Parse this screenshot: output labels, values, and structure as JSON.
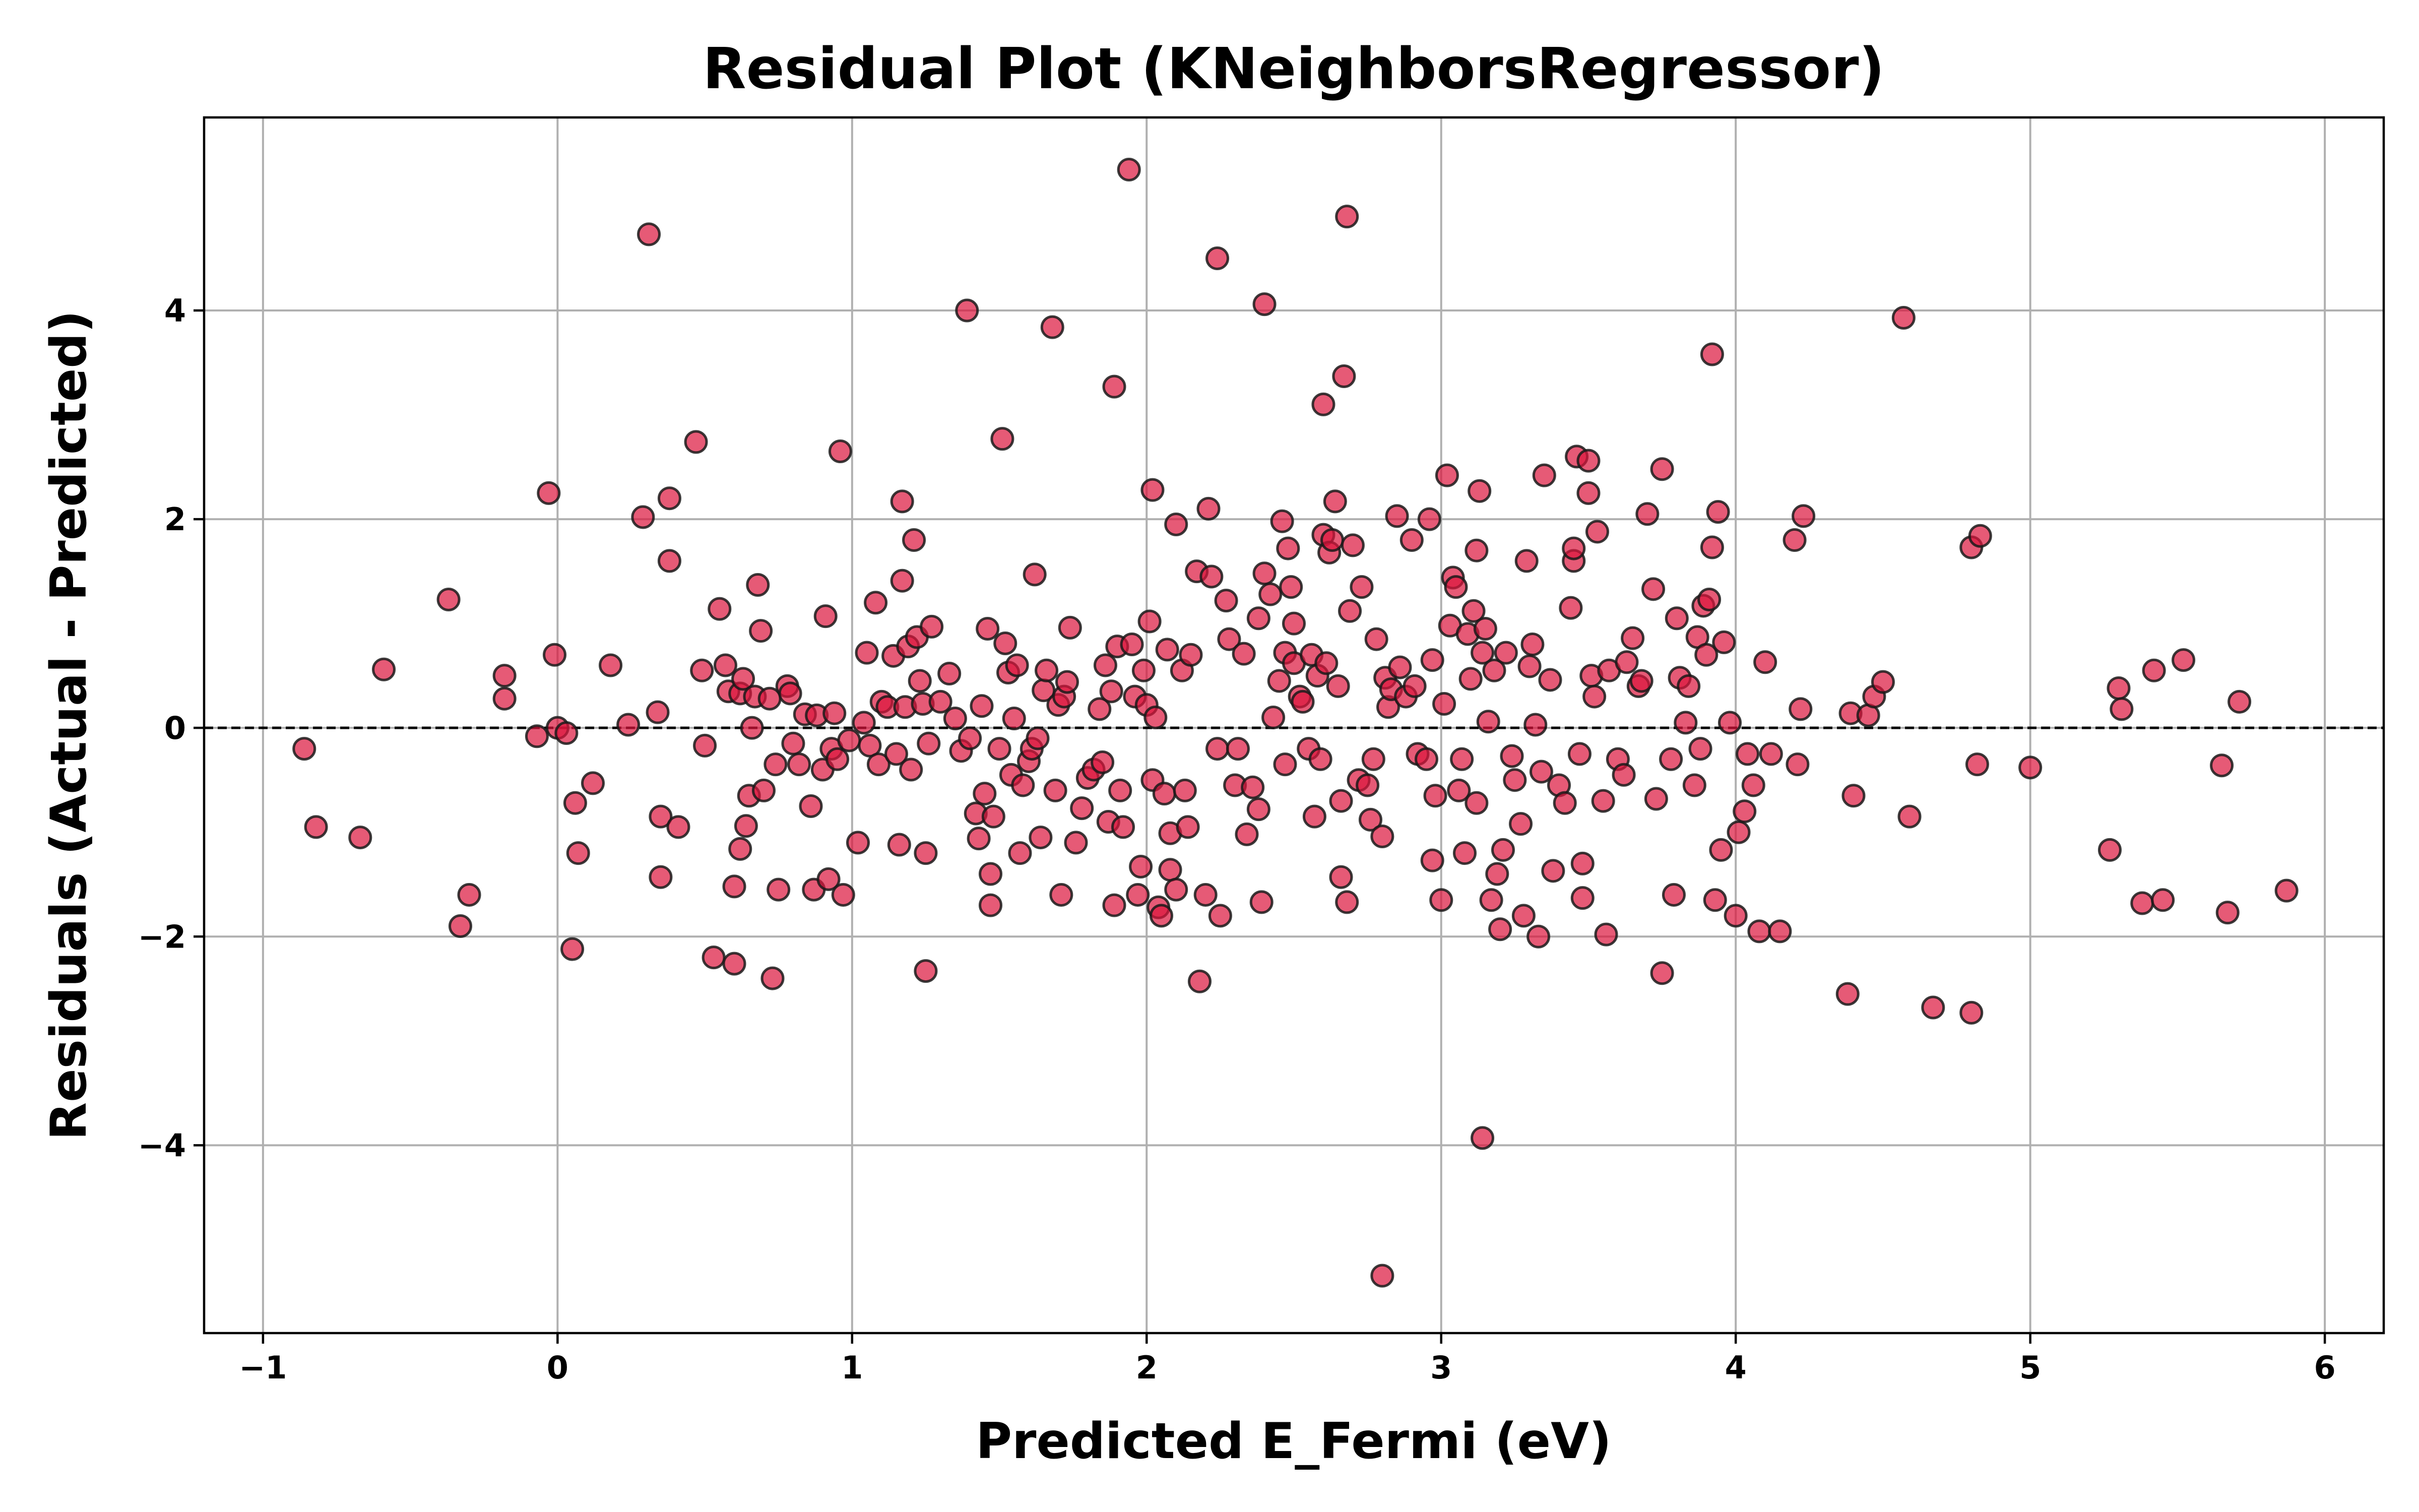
{
  "chart_data": {
    "type": "scatter",
    "title": "Residual Plot (KNeighborsRegressor)",
    "xlabel": "Predicted E_Fermi (eV)",
    "ylabel": "Residuals (Actual - Predicted)",
    "xlim": [
      -1.2,
      6.2
    ],
    "ylim": [
      -5.8,
      5.85
    ],
    "xticks": [
      -1,
      0,
      1,
      2,
      3,
      4,
      5,
      6
    ],
    "xtick_labels": [
      "−1",
      "0",
      "1",
      "2",
      "3",
      "4",
      "5",
      "6"
    ],
    "yticks": [
      -4,
      -2,
      0,
      2,
      4
    ],
    "ytick_labels": [
      "−4",
      "−2",
      "0",
      "2",
      "4"
    ],
    "grid": true,
    "reference_line": {
      "y": 0,
      "style": "dashed",
      "color": "#000000"
    },
    "marker": {
      "fill": "#dc143c",
      "edge": "#1a1a1a",
      "alpha": 0.7
    },
    "points": [
      [
        -0.86,
        -0.2
      ],
      [
        -0.82,
        -0.95
      ],
      [
        -0.67,
        -1.05
      ],
      [
        -0.59,
        0.56
      ],
      [
        -0.37,
        1.23
      ],
      [
        -0.3,
        -1.6
      ],
      [
        -0.33,
        -1.9
      ],
      [
        -0.18,
        0.5
      ],
      [
        -0.18,
        0.28
      ],
      [
        -0.07,
        -0.08
      ],
      [
        -0.03,
        2.25
      ],
      [
        -0.01,
        0.7
      ],
      [
        0.0,
        0.0
      ],
      [
        0.03,
        -0.05
      ],
      [
        0.06,
        -0.72
      ],
      [
        0.07,
        -1.2
      ],
      [
        0.05,
        -2.12
      ],
      [
        0.12,
        -0.53
      ],
      [
        0.18,
        0.6
      ],
      [
        0.24,
        0.03
      ],
      [
        0.29,
        2.02
      ],
      [
        0.31,
        4.73
      ],
      [
        0.34,
        0.15
      ],
      [
        0.35,
        -0.85
      ],
      [
        0.35,
        -1.43
      ],
      [
        0.38,
        2.2
      ],
      [
        0.38,
        1.6
      ],
      [
        0.41,
        -0.95
      ],
      [
        0.47,
        2.74
      ],
      [
        0.49,
        0.55
      ],
      [
        0.5,
        -0.17
      ],
      [
        0.53,
        -2.2
      ],
      [
        0.55,
        1.14
      ],
      [
        0.57,
        0.6
      ],
      [
        0.58,
        0.35
      ],
      [
        0.6,
        -1.52
      ],
      [
        0.6,
        -2.26
      ],
      [
        0.62,
        -1.16
      ],
      [
        0.62,
        0.33
      ],
      [
        0.63,
        0.47
      ],
      [
        0.64,
        -0.94
      ],
      [
        0.65,
        -0.65
      ],
      [
        0.66,
        0.0
      ],
      [
        0.67,
        0.3
      ],
      [
        0.68,
        1.37
      ],
      [
        0.69,
        0.93
      ],
      [
        0.7,
        -0.6
      ],
      [
        0.72,
        0.28
      ],
      [
        0.73,
        -2.4
      ],
      [
        0.74,
        -0.35
      ],
      [
        0.75,
        -1.55
      ],
      [
        0.78,
        0.4
      ],
      [
        0.79,
        0.33
      ],
      [
        0.8,
        -0.15
      ],
      [
        0.82,
        -0.35
      ],
      [
        0.84,
        0.13
      ],
      [
        0.86,
        -0.75
      ],
      [
        0.87,
        -1.55
      ],
      [
        0.88,
        0.12
      ],
      [
        0.9,
        -0.4
      ],
      [
        0.91,
        1.07
      ],
      [
        0.92,
        -1.45
      ],
      [
        0.93,
        -0.2
      ],
      [
        0.94,
        0.14
      ],
      [
        0.95,
        -0.3
      ],
      [
        0.96,
        2.65
      ],
      [
        0.97,
        -1.6
      ],
      [
        0.99,
        -0.12
      ],
      [
        1.02,
        -1.1
      ],
      [
        1.04,
        0.05
      ],
      [
        1.05,
        0.72
      ],
      [
        1.06,
        -0.17
      ],
      [
        1.08,
        1.2
      ],
      [
        1.09,
        -0.35
      ],
      [
        1.1,
        0.25
      ],
      [
        1.12,
        0.2
      ],
      [
        1.14,
        0.69
      ],
      [
        1.15,
        -0.25
      ],
      [
        1.16,
        -1.12
      ],
      [
        1.17,
        2.17
      ],
      [
        1.17,
        1.41
      ],
      [
        1.18,
        0.2
      ],
      [
        1.19,
        0.78
      ],
      [
        1.2,
        -0.4
      ],
      [
        1.21,
        1.8
      ],
      [
        1.22,
        0.87
      ],
      [
        1.23,
        0.45
      ],
      [
        1.24,
        0.23
      ],
      [
        1.25,
        -1.2
      ],
      [
        1.26,
        -0.15
      ],
      [
        1.25,
        -2.33
      ],
      [
        1.27,
        0.97
      ],
      [
        1.3,
        0.25
      ],
      [
        1.33,
        0.52
      ],
      [
        1.35,
        0.09
      ],
      [
        1.37,
        -0.22
      ],
      [
        1.39,
        4.0
      ],
      [
        1.4,
        -0.1
      ],
      [
        1.42,
        -0.82
      ],
      [
        1.43,
        -1.06
      ],
      [
        1.44,
        0.21
      ],
      [
        1.45,
        -0.63
      ],
      [
        1.46,
        0.95
      ],
      [
        1.47,
        -1.4
      ],
      [
        1.47,
        -1.7
      ],
      [
        1.48,
        -0.85
      ],
      [
        1.5,
        -0.2
      ],
      [
        1.51,
        2.77
      ],
      [
        1.52,
        0.81
      ],
      [
        1.53,
        0.53
      ],
      [
        1.54,
        -0.45
      ],
      [
        1.55,
        0.09
      ],
      [
        1.56,
        0.6
      ],
      [
        1.57,
        -1.2
      ],
      [
        1.58,
        -0.55
      ],
      [
        1.6,
        -0.32
      ],
      [
        1.61,
        -0.2
      ],
      [
        1.62,
        1.47
      ],
      [
        1.63,
        -0.1
      ],
      [
        1.64,
        -1.05
      ],
      [
        1.65,
        0.36
      ],
      [
        1.66,
        0.55
      ],
      [
        1.68,
        3.84
      ],
      [
        1.69,
        -0.6
      ],
      [
        1.7,
        0.22
      ],
      [
        1.71,
        -1.6
      ],
      [
        1.72,
        0.3
      ],
      [
        1.73,
        0.44
      ],
      [
        1.74,
        0.96
      ],
      [
        1.76,
        -1.1
      ],
      [
        1.78,
        -0.77
      ],
      [
        1.8,
        -0.48
      ],
      [
        1.82,
        -0.4
      ],
      [
        1.84,
        0.18
      ],
      [
        1.85,
        -0.33
      ],
      [
        1.86,
        0.6
      ],
      [
        1.87,
        -0.9
      ],
      [
        1.88,
        0.35
      ],
      [
        1.89,
        3.27
      ],
      [
        1.89,
        -1.7
      ],
      [
        1.9,
        0.78
      ],
      [
        1.91,
        -0.6
      ],
      [
        1.92,
        -0.95
      ],
      [
        1.94,
        5.35
      ],
      [
        1.95,
        0.8
      ],
      [
        1.96,
        0.3
      ],
      [
        1.97,
        -1.6
      ],
      [
        1.98,
        -1.33
      ],
      [
        1.99,
        0.55
      ],
      [
        2.0,
        0.22
      ],
      [
        2.01,
        1.02
      ],
      [
        2.02,
        2.28
      ],
      [
        2.02,
        -0.5
      ],
      [
        2.03,
        0.1
      ],
      [
        2.04,
        -1.72
      ],
      [
        2.05,
        -1.8
      ],
      [
        2.06,
        -0.63
      ],
      [
        2.07,
        0.75
      ],
      [
        2.08,
        -1.36
      ],
      [
        2.08,
        -1.01
      ],
      [
        2.1,
        -1.55
      ],
      [
        2.1,
        1.95
      ],
      [
        2.12,
        0.55
      ],
      [
        2.13,
        -0.6
      ],
      [
        2.14,
        -0.95
      ],
      [
        2.15,
        0.7
      ],
      [
        2.17,
        1.5
      ],
      [
        2.18,
        -2.43
      ],
      [
        2.2,
        -1.6
      ],
      [
        2.21,
        2.1
      ],
      [
        2.22,
        1.45
      ],
      [
        2.24,
        -0.2
      ],
      [
        2.24,
        4.5
      ],
      [
        2.25,
        -1.8
      ],
      [
        2.27,
        1.22
      ],
      [
        2.28,
        0.85
      ],
      [
        2.3,
        -0.55
      ],
      [
        2.31,
        -0.2
      ],
      [
        2.33,
        0.71
      ],
      [
        2.34,
        -1.02
      ],
      [
        2.36,
        -0.57
      ],
      [
        2.38,
        -0.78
      ],
      [
        2.38,
        1.05
      ],
      [
        2.39,
        -1.67
      ],
      [
        2.4,
        1.48
      ],
      [
        2.4,
        4.06
      ],
      [
        2.42,
        1.28
      ],
      [
        2.43,
        0.1
      ],
      [
        2.45,
        0.45
      ],
      [
        2.46,
        1.98
      ],
      [
        2.47,
        -0.35
      ],
      [
        2.47,
        0.72
      ],
      [
        2.48,
        1.72
      ],
      [
        2.49,
        1.35
      ],
      [
        2.5,
        0.62
      ],
      [
        2.5,
        1.0
      ],
      [
        2.52,
        0.3
      ],
      [
        2.53,
        0.25
      ],
      [
        2.55,
        -0.2
      ],
      [
        2.56,
        0.7
      ],
      [
        2.57,
        -0.85
      ],
      [
        2.58,
        0.5
      ],
      [
        2.59,
        -0.3
      ],
      [
        2.6,
        1.85
      ],
      [
        2.6,
        3.1
      ],
      [
        2.61,
        0.62
      ],
      [
        2.62,
        1.68
      ],
      [
        2.63,
        1.8
      ],
      [
        2.64,
        2.17
      ],
      [
        2.65,
        0.4
      ],
      [
        2.66,
        -1.43
      ],
      [
        2.66,
        -0.7
      ],
      [
        2.67,
        3.37
      ],
      [
        2.68,
        4.9
      ],
      [
        2.68,
        -1.67
      ],
      [
        2.69,
        1.12
      ],
      [
        2.7,
        1.75
      ],
      [
        2.72,
        -0.5
      ],
      [
        2.73,
        1.35
      ],
      [
        2.75,
        -0.55
      ],
      [
        2.76,
        -0.88
      ],
      [
        2.77,
        -0.3
      ],
      [
        2.78,
        0.85
      ],
      [
        2.8,
        -1.04
      ],
      [
        2.8,
        -5.25
      ],
      [
        2.81,
        0.48
      ],
      [
        2.82,
        0.2
      ],
      [
        2.83,
        0.37
      ],
      [
        2.85,
        2.03
      ],
      [
        2.86,
        0.58
      ],
      [
        2.88,
        0.3
      ],
      [
        2.9,
        1.8
      ],
      [
        2.91,
        0.4
      ],
      [
        2.92,
        -0.25
      ],
      [
        2.95,
        -0.3
      ],
      [
        2.96,
        2.0
      ],
      [
        2.97,
        0.65
      ],
      [
        2.97,
        -1.27
      ],
      [
        2.98,
        -0.65
      ],
      [
        3.0,
        -1.65
      ],
      [
        3.01,
        0.23
      ],
      [
        3.02,
        2.42
      ],
      [
        3.03,
        0.98
      ],
      [
        3.04,
        1.44
      ],
      [
        3.05,
        1.35
      ],
      [
        3.06,
        -0.6
      ],
      [
        3.07,
        -0.3
      ],
      [
        3.08,
        -1.2
      ],
      [
        3.09,
        0.9
      ],
      [
        3.1,
        0.47
      ],
      [
        3.11,
        1.12
      ],
      [
        3.12,
        -0.72
      ],
      [
        3.12,
        1.7
      ],
      [
        3.13,
        2.27
      ],
      [
        3.14,
        0.72
      ],
      [
        3.14,
        -3.93
      ],
      [
        3.15,
        0.95
      ],
      [
        3.16,
        0.06
      ],
      [
        3.17,
        -1.65
      ],
      [
        3.18,
        0.55
      ],
      [
        3.19,
        -1.4
      ],
      [
        3.2,
        -1.93
      ],
      [
        3.21,
        -1.17
      ],
      [
        3.22,
        0.72
      ],
      [
        3.24,
        -0.27
      ],
      [
        3.25,
        -0.5
      ],
      [
        3.27,
        -0.92
      ],
      [
        3.28,
        -1.8
      ],
      [
        3.29,
        1.6
      ],
      [
        3.3,
        0.59
      ],
      [
        3.31,
        0.8
      ],
      [
        3.32,
        0.03
      ],
      [
        3.33,
        -2.0
      ],
      [
        3.34,
        -0.42
      ],
      [
        3.35,
        2.42
      ],
      [
        3.37,
        0.46
      ],
      [
        3.38,
        -1.37
      ],
      [
        3.4,
        -0.55
      ],
      [
        3.42,
        -0.72
      ],
      [
        3.44,
        1.15
      ],
      [
        3.45,
        1.6
      ],
      [
        3.45,
        1.72
      ],
      [
        3.46,
        2.6
      ],
      [
        3.47,
        -0.25
      ],
      [
        3.48,
        -1.3
      ],
      [
        3.48,
        -1.63
      ],
      [
        3.5,
        2.25
      ],
      [
        3.5,
        2.56
      ],
      [
        3.51,
        0.5
      ],
      [
        3.52,
        0.3
      ],
      [
        3.53,
        1.88
      ],
      [
        3.55,
        -0.7
      ],
      [
        3.56,
        -1.98
      ],
      [
        3.57,
        0.55
      ],
      [
        3.6,
        -0.3
      ],
      [
        3.62,
        -0.45
      ],
      [
        3.63,
        0.63
      ],
      [
        3.65,
        0.86
      ],
      [
        3.67,
        0.4
      ],
      [
        3.68,
        0.45
      ],
      [
        3.7,
        2.05
      ],
      [
        3.72,
        1.33
      ],
      [
        3.73,
        -0.68
      ],
      [
        3.75,
        2.48
      ],
      [
        3.75,
        -2.35
      ],
      [
        3.78,
        -0.3
      ],
      [
        3.79,
        -1.6
      ],
      [
        3.8,
        1.05
      ],
      [
        3.81,
        0.48
      ],
      [
        3.83,
        0.05
      ],
      [
        3.84,
        0.4
      ],
      [
        3.86,
        -0.55
      ],
      [
        3.87,
        0.87
      ],
      [
        3.88,
        -0.2
      ],
      [
        3.89,
        1.17
      ],
      [
        3.9,
        0.7
      ],
      [
        3.91,
        1.23
      ],
      [
        3.92,
        3.58
      ],
      [
        3.92,
        1.73
      ],
      [
        3.93,
        -1.65
      ],
      [
        3.94,
        2.07
      ],
      [
        3.95,
        -1.17
      ],
      [
        3.96,
        0.82
      ],
      [
        3.98,
        0.05
      ],
      [
        4.0,
        -1.8
      ],
      [
        4.01,
        -1.0
      ],
      [
        4.03,
        -0.8
      ],
      [
        4.04,
        -0.25
      ],
      [
        4.06,
        -0.55
      ],
      [
        4.08,
        -1.95
      ],
      [
        4.1,
        0.63
      ],
      [
        4.12,
        -0.25
      ],
      [
        4.15,
        -1.95
      ],
      [
        4.2,
        1.8
      ],
      [
        4.21,
        -0.35
      ],
      [
        4.22,
        0.18
      ],
      [
        4.23,
        2.03
      ],
      [
        4.38,
        -2.55
      ],
      [
        4.39,
        0.14
      ],
      [
        4.4,
        -0.65
      ],
      [
        4.45,
        0.12
      ],
      [
        4.47,
        0.3
      ],
      [
        4.5,
        0.44
      ],
      [
        4.57,
        3.93
      ],
      [
        4.59,
        -0.85
      ],
      [
        4.67,
        -2.68
      ],
      [
        4.8,
        1.73
      ],
      [
        4.8,
        -2.73
      ],
      [
        4.82,
        -0.35
      ],
      [
        4.83,
        1.84
      ],
      [
        5.0,
        -0.38
      ],
      [
        5.27,
        -1.17
      ],
      [
        5.3,
        0.38
      ],
      [
        5.31,
        0.18
      ],
      [
        5.38,
        -1.68
      ],
      [
        5.42,
        0.55
      ],
      [
        5.45,
        -1.65
      ],
      [
        5.52,
        0.65
      ],
      [
        5.65,
        -0.36
      ],
      [
        5.67,
        -1.77
      ],
      [
        5.71,
        0.25
      ],
      [
        5.87,
        -1.56
      ]
    ]
  }
}
